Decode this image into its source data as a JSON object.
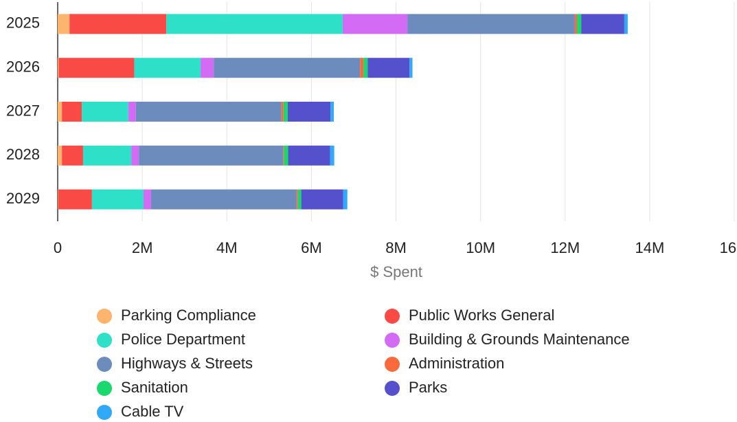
{
  "chart_data": {
    "type": "bar",
    "orientation": "horizontal",
    "stacked": true,
    "x_label": "$ Spent",
    "categories": [
      "2025",
      "2026",
      "2027",
      "2028",
      "2029"
    ],
    "series": [
      {
        "name": "Parking Compliance",
        "color": "#fdb56e",
        "values": [
          280000,
          20000,
          100000,
          100000,
          10000
        ]
      },
      {
        "name": "Public Works General",
        "color": "#fa4a45",
        "values": [
          2290000,
          1790000,
          470000,
          500000,
          800000
        ]
      },
      {
        "name": "Police Department",
        "color": "#2fe0c9",
        "values": [
          4170000,
          1570000,
          1100000,
          1140000,
          1220000
        ]
      },
      {
        "name": "Building & Grounds Maintenance",
        "color": "#d36bf5",
        "values": [
          1530000,
          310000,
          180000,
          180000,
          180000
        ]
      },
      {
        "name": "Highways & Streets",
        "color": "#6b8cbd",
        "values": [
          3960000,
          3460000,
          3440000,
          3410000,
          3440000
        ]
      },
      {
        "name": "Administration",
        "color": "#fb6a3c",
        "values": [
          50000,
          80000,
          50000,
          20000,
          30000
        ]
      },
      {
        "name": "Sanitation",
        "color": "#18d86e",
        "values": [
          100000,
          100000,
          100000,
          100000,
          80000
        ]
      },
      {
        "name": "Parks",
        "color": "#5551cc",
        "values": [
          1020000,
          990000,
          1010000,
          990000,
          990000
        ]
      },
      {
        "name": "Cable TV",
        "color": "#32a9f8",
        "values": [
          80000,
          70000,
          80000,
          100000,
          100000
        ]
      }
    ],
    "xlim": [
      0,
      16000000
    ],
    "xticks": [
      0,
      {
        "value": 2000000,
        "label": "2M"
      },
      {
        "value": 4000000,
        "label": "4M"
      },
      {
        "value": 6000000,
        "label": "6M"
      },
      {
        "value": 8000000,
        "label": "8M"
      },
      {
        "value": 10000000,
        "label": "10M"
      },
      {
        "value": 12000000,
        "label": "12M"
      },
      {
        "value": 14000000,
        "label": "14M"
      },
      {
        "value": 16000000,
        "label": "16M"
      }
    ],
    "grid": true
  }
}
